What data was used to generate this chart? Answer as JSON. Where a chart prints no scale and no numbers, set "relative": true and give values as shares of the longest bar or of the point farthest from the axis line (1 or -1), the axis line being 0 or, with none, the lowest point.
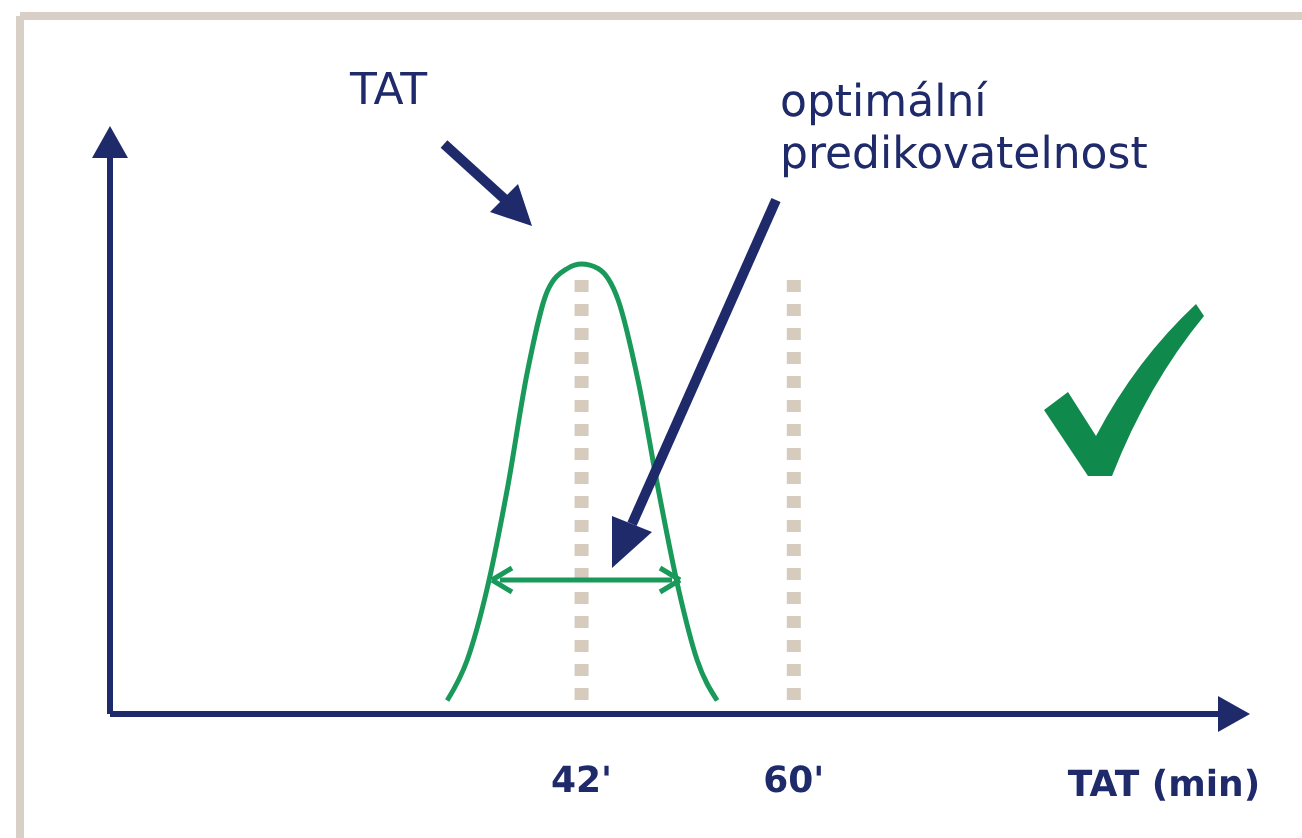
{
  "chart_data": {
    "type": "line",
    "relative": true,
    "xlabel": "TAT (min)",
    "xlim": [
      2,
      97
    ],
    "xticks": [
      {
        "value": 42,
        "label": "42'"
      },
      {
        "value": 60,
        "label": "60'"
      }
    ],
    "tick_labels": "x",
    "x": [
      30.6,
      32.3,
      34.0,
      35.7,
      37.4,
      39.1,
      40.8,
      42,
      43.4,
      45.1,
      46.8,
      48.5,
      50.2,
      51.8,
      53.5
    ],
    "series": [
      {
        "color": "#1a9a5a",
        "values": [
          0.03,
          0.12,
          0.28,
          0.5,
          0.76,
          0.94,
          0.99,
          1,
          0.99,
          0.92,
          0.74,
          0.5,
          0.28,
          0.12,
          0.03
        ]
      }
    ],
    "ref_lines": [
      {
        "axis": "x",
        "value": 42,
        "color": "#d6cbbd",
        "line_style": "dotted"
      },
      {
        "axis": "x",
        "value": 60,
        "color": "#d6cbbd",
        "line_style": "dotted"
      }
    ],
    "marker": "none",
    "line_style": "solid",
    "annotations": [
      "TAT",
      "optimální predikovatelnost"
    ]
  }
}
